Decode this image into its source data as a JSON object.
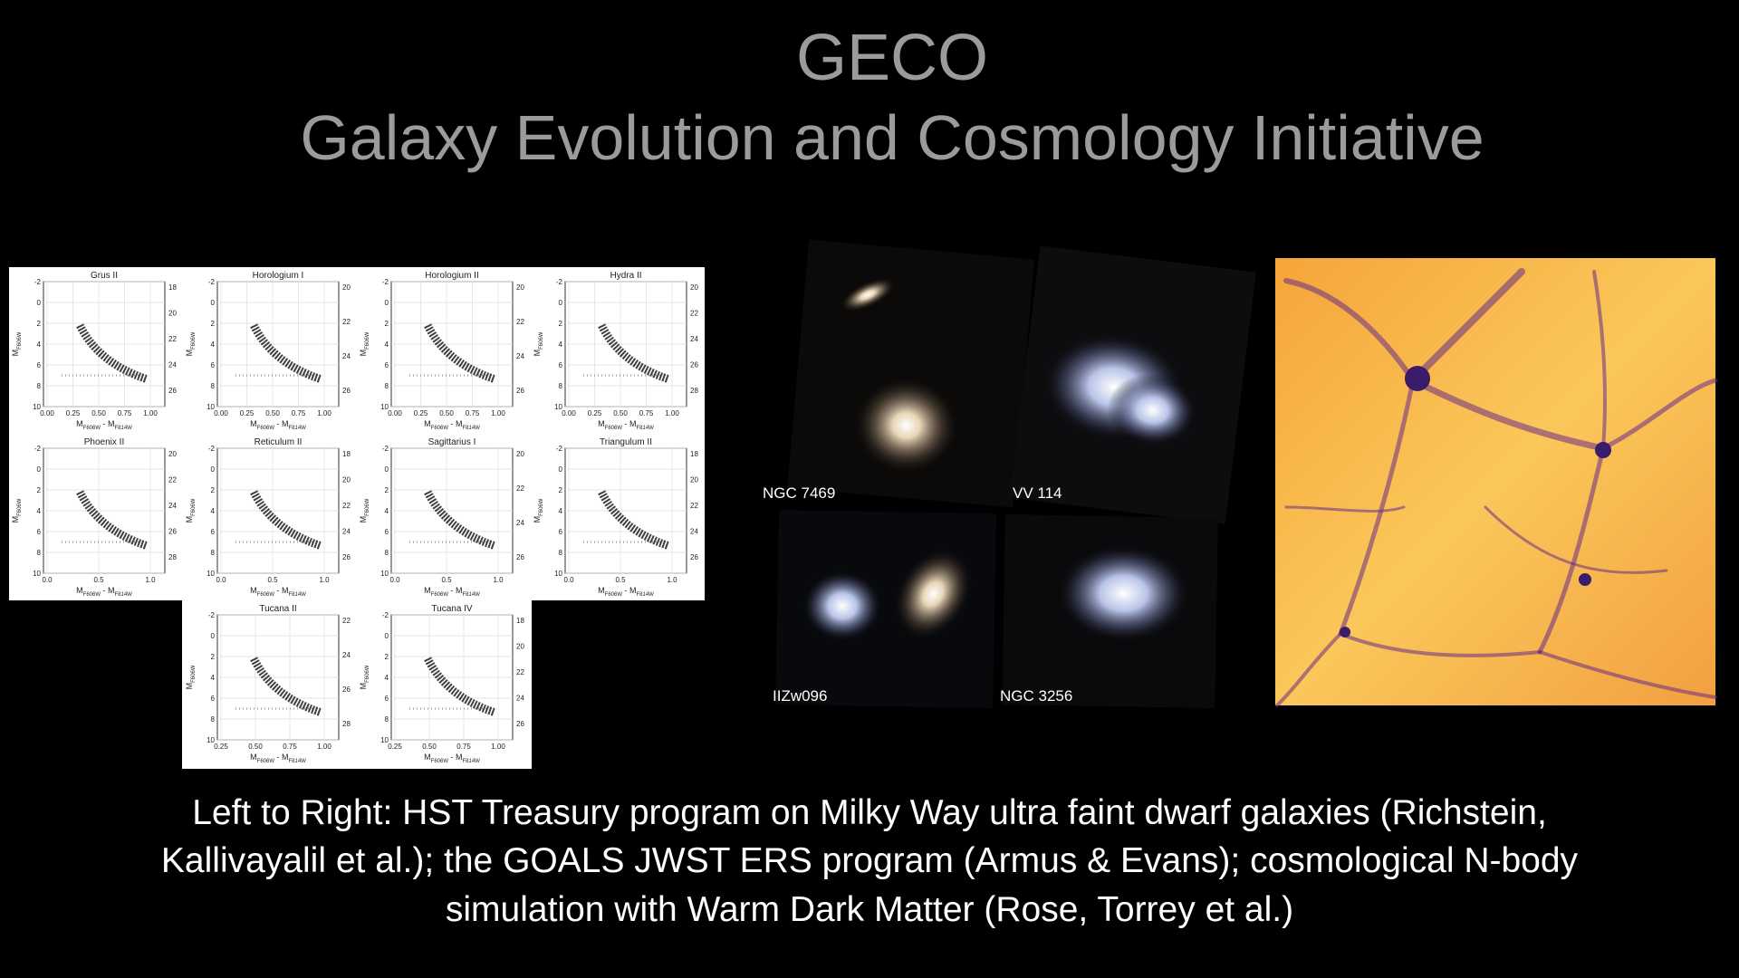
{
  "header": {
    "title": "GECO",
    "subtitle": "Galaxy Evolution and Cosmology Initiative"
  },
  "cmd_panel": {
    "y_label": {
      "main": "M",
      "sub": "F606W"
    },
    "x_label": {
      "m1": "M",
      "s1": "F606W",
      "mid": " - M",
      "s2": "F814W"
    },
    "plots": [
      {
        "title": "Grus II",
        "left_ticks": [
          -2,
          0,
          2,
          4,
          6,
          8,
          10
        ],
        "right_ticks": [
          18,
          20,
          22,
          24,
          26
        ],
        "x_ticks": [
          "0.00",
          "0.25",
          "0.50",
          "0.75",
          "1.00"
        ]
      },
      {
        "title": "Horologium I",
        "left_ticks": [
          -2,
          0,
          2,
          4,
          6,
          8,
          10
        ],
        "right_ticks": [
          20,
          22,
          24,
          26
        ],
        "x_ticks": [
          "0.00",
          "0.25",
          "0.50",
          "0.75",
          "1.00"
        ]
      },
      {
        "title": "Horologium II",
        "left_ticks": [
          -2,
          0,
          2,
          4,
          6,
          8,
          10
        ],
        "right_ticks": [
          20,
          22,
          24,
          26
        ],
        "x_ticks": [
          "0.00",
          "0.25",
          "0.50",
          "0.75",
          "1.00"
        ]
      },
      {
        "title": "Hydra II",
        "left_ticks": [
          -2,
          0,
          2,
          4,
          6,
          8,
          10
        ],
        "right_ticks": [
          20,
          22,
          24,
          26,
          28
        ],
        "x_ticks": [
          "0.00",
          "0.25",
          "0.50",
          "0.75",
          "1.00"
        ]
      },
      {
        "title": "Phoenix II",
        "left_ticks": [
          -2,
          0,
          2,
          4,
          6,
          8,
          10
        ],
        "right_ticks": [
          20,
          22,
          24,
          26,
          28
        ],
        "x_ticks": [
          "0.0",
          "0.5",
          "1.0"
        ]
      },
      {
        "title": "Reticulum II",
        "left_ticks": [
          -2,
          0,
          2,
          4,
          6,
          8,
          10
        ],
        "right_ticks": [
          18,
          20,
          22,
          24,
          26
        ],
        "x_ticks": [
          "0.0",
          "0.5",
          "1.0"
        ]
      },
      {
        "title": "Sagittarius I",
        "left_ticks": [
          -2,
          0,
          2,
          4,
          6,
          8,
          10
        ],
        "right_ticks": [
          20,
          22,
          24,
          26
        ],
        "x_ticks": [
          "0.0",
          "0.5",
          "1.0"
        ]
      },
      {
        "title": "Triangulum II",
        "left_ticks": [
          -2,
          0,
          2,
          4,
          6,
          8,
          10
        ],
        "right_ticks": [
          18,
          20,
          22,
          24,
          26
        ],
        "x_ticks": [
          "0.0",
          "0.5",
          "1.0"
        ]
      },
      {
        "title": "Tucana II",
        "left_ticks": [
          -2,
          0,
          2,
          4,
          6,
          8,
          10
        ],
        "right_ticks": [
          22,
          24,
          26,
          28
        ],
        "x_ticks": [
          "0.25",
          "0.50",
          "0.75",
          "1.00"
        ]
      },
      {
        "title": "Tucana IV",
        "left_ticks": [
          -2,
          0,
          2,
          4,
          6,
          8,
          10
        ],
        "right_ticks": [
          18,
          20,
          22,
          24,
          26
        ],
        "x_ticks": [
          "0.25",
          "0.50",
          "0.75",
          "1.00"
        ]
      }
    ]
  },
  "images": [
    {
      "label": "NGC 7469"
    },
    {
      "label": "VV 114"
    },
    {
      "label": "IIZw096"
    },
    {
      "label": "NGC 3256"
    }
  ],
  "caption": {
    "lines": [
      "Left to Right: HST Treasury program on Milky Way ultra faint dwarf galaxies (Richstein,",
      "Kallivayalil et al.); the GOALS JWST ERS program (Armus & Evans); cosmological N-body",
      "simulation with Warm Dark Matter (Rose, Torrey et al.)"
    ]
  }
}
